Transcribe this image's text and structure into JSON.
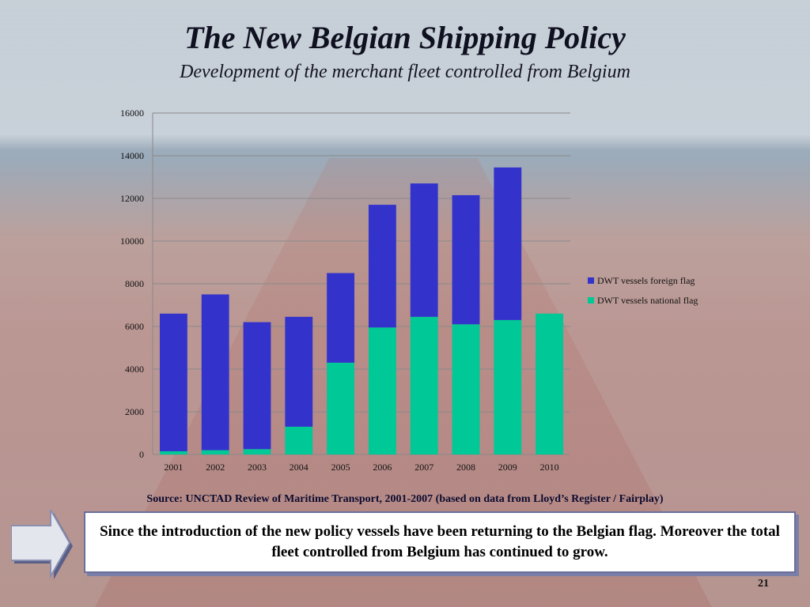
{
  "slide": {
    "title": "The New Belgian Shipping Policy",
    "subtitle": "Development of the merchant fleet controlled from Belgium",
    "source": "Source: UNCTAD Review of Maritime Transport, 2001-2007 (based on data from Lloyd’s Register / Fairplay)",
    "callout": "Since the introduction of the new policy vessels have been returning to the Belgian flag. Moreover the total fleet controlled from Belgium has continued to grow.",
    "page_number": "21"
  },
  "chart_data": {
    "type": "bar",
    "stacked": true,
    "categories": [
      "2001",
      "2002",
      "2003",
      "2004",
      "2005",
      "2006",
      "2007",
      "2008",
      "2009",
      "2010"
    ],
    "series": [
      {
        "name": "DWT vessels national flag",
        "color": "#00c896",
        "values": [
          150,
          200,
          250,
          1300,
          4300,
          5950,
          6450,
          6100,
          6300,
          6600
        ]
      },
      {
        "name": "DWT vessels foreign flag",
        "color": "#3333cc",
        "values": [
          6450,
          7300,
          5950,
          5150,
          4200,
          5750,
          6250,
          6050,
          7150,
          0
        ]
      }
    ],
    "ylim": [
      0,
      16000
    ],
    "yticks": [
      0,
      2000,
      4000,
      6000,
      8000,
      10000,
      12000,
      14000,
      16000
    ],
    "legend_order": [
      "DWT vessels foreign flag",
      "DWT vessels national flag"
    ],
    "legend_position": "right",
    "grid": true
  }
}
